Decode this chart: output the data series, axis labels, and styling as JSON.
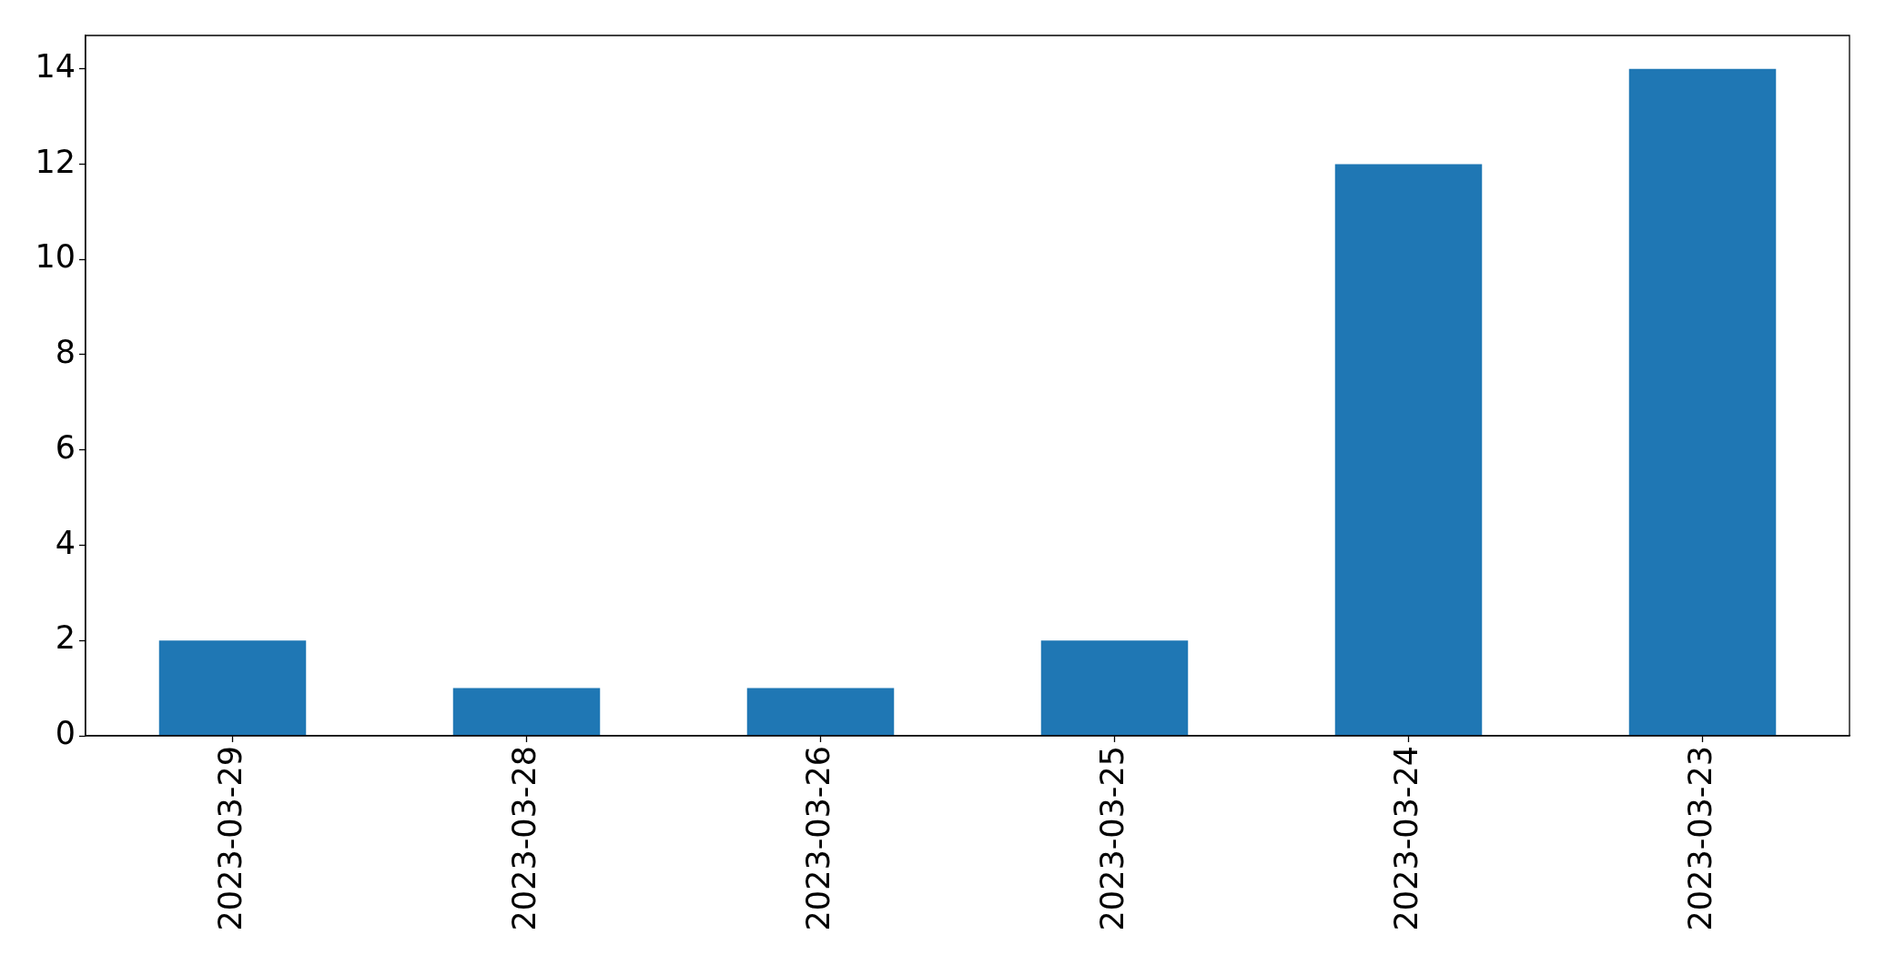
{
  "chart_data": {
    "type": "bar",
    "categories": [
      "2023-03-29",
      "2023-03-28",
      "2023-03-26",
      "2023-03-25",
      "2023-03-24",
      "2023-03-23"
    ],
    "values": [
      2,
      1,
      1,
      2,
      12,
      14
    ],
    "color": "#1f77b4",
    "ylim": [
      0,
      14.7
    ],
    "yticks": [
      0,
      2,
      4,
      6,
      8,
      10,
      12,
      14
    ],
    "grid": false,
    "legend": false
  }
}
